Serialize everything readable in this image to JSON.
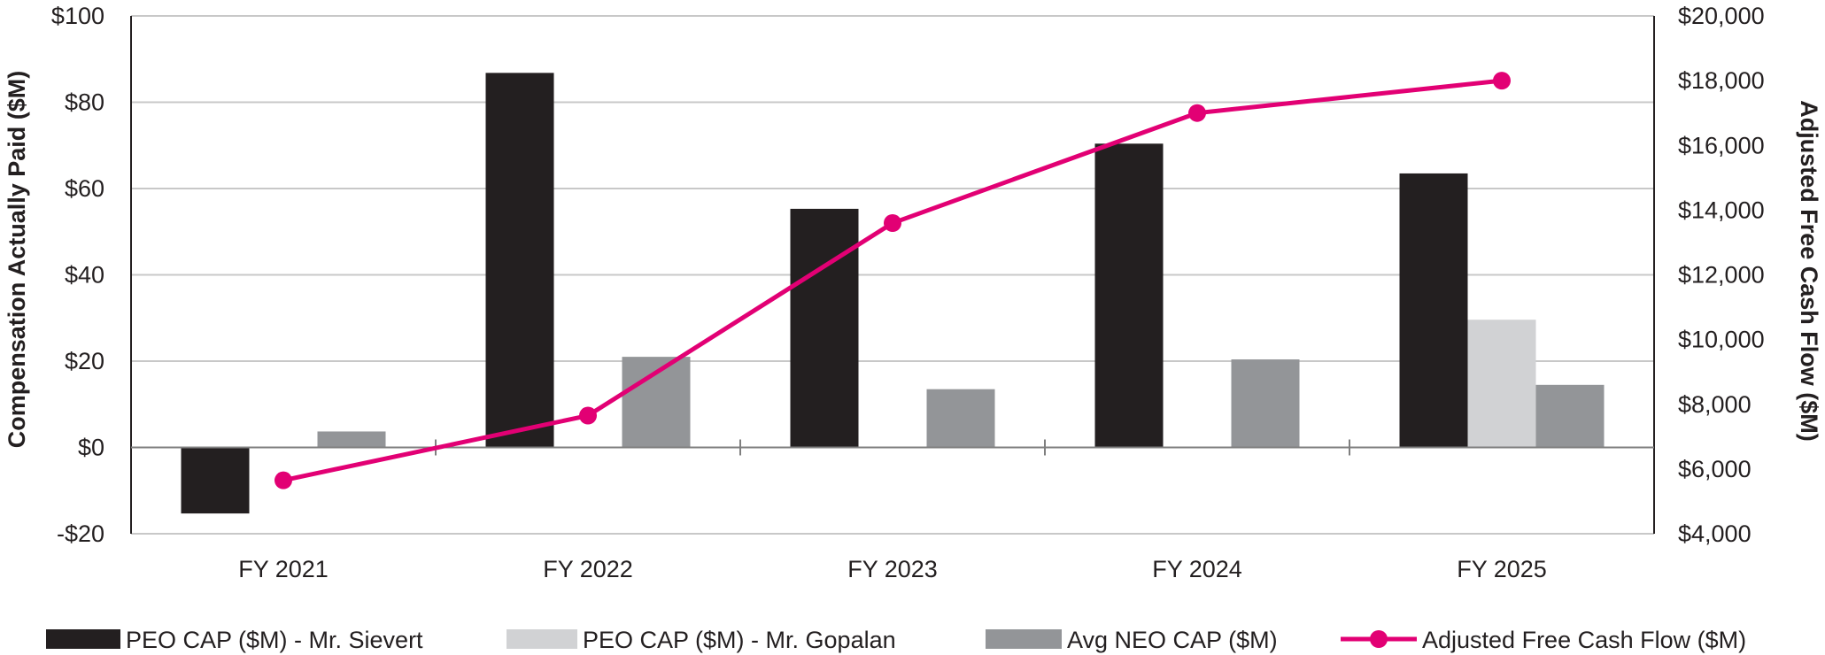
{
  "chart_data": {
    "type": "bar",
    "categories": [
      "FY 2021",
      "FY 2022",
      "FY 2023",
      "FY 2024",
      "FY 2025"
    ],
    "series": [
      {
        "name": "PEO CAP ($M) - Mr. Sievert",
        "kind": "bar",
        "axis": "left",
        "color": "#231f20",
        "values": [
          -15.3,
          86.8,
          55.3,
          70.4,
          63.5
        ]
      },
      {
        "name": "PEO CAP ($M) - Mr. Gopalan",
        "kind": "bar",
        "axis": "left",
        "color": "#d1d2d4",
        "values": [
          null,
          null,
          null,
          null,
          29.6
        ]
      },
      {
        "name": "Avg NEO CAP ($M)",
        "kind": "bar",
        "axis": "left",
        "color": "#939598",
        "values": [
          3.7,
          21.0,
          13.5,
          20.4,
          14.5
        ]
      },
      {
        "name": "Adjusted Free Cash Flow ($M)",
        "kind": "line",
        "axis": "right",
        "color": "#e20074",
        "values": [
          5650,
          7650,
          13600,
          17000,
          18000
        ]
      }
    ],
    "y_left": {
      "label": "Compensation Actually Paid ($M)",
      "range": [
        -20,
        100
      ],
      "ticks": [
        -20,
        0,
        20,
        40,
        60,
        80,
        100
      ],
      "tick_labels": [
        "-$20",
        "$0",
        "$20",
        "$40",
        "$60",
        "$80",
        "$100"
      ]
    },
    "y_right": {
      "label": "Adjusted Free Cash Flow ($M)",
      "range": [
        4000,
        20000
      ],
      "ticks": [
        4000,
        6000,
        8000,
        10000,
        12000,
        14000,
        16000,
        18000,
        20000
      ],
      "tick_labels": [
        "$4,000",
        "$6,000",
        "$8,000",
        "$10,000",
        "$12,000",
        "$14,000",
        "$16,000",
        "$18,000",
        "$20,000"
      ]
    },
    "grid": true,
    "legend_position": "bottom"
  }
}
